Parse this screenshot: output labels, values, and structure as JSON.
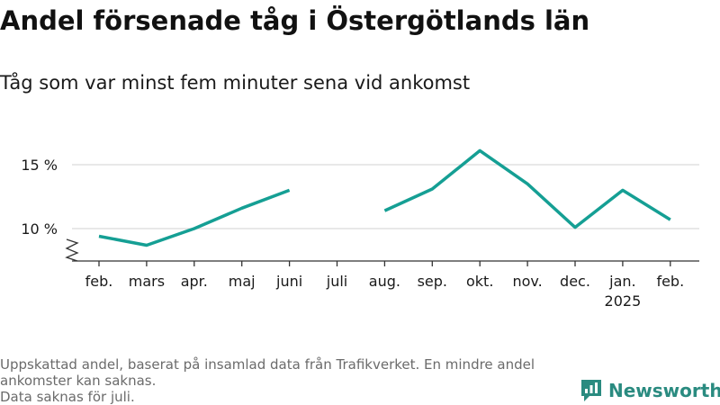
{
  "title": "Andel försenade tåg i Östergötlands län",
  "subtitle": "Tåg som var minst fem minuter sena vid ankomst",
  "footnote": {
    "line1": "Uppskattad andel, baserat på insamlad data från Trafikverket. En mindre andel",
    "line2": "ankomster kan saknas.",
    "line3": "Data saknas för juli."
  },
  "brand": {
    "name": "Newsworthy",
    "color": "#2a8b80"
  },
  "chart_data": {
    "type": "line",
    "title": "Andel försenade tåg i Östergötlands län",
    "subtitle": "Tåg som var minst fem minuter sena vid ankomst",
    "xlabel": "",
    "ylabel": "",
    "categories": [
      "feb.",
      "mars",
      "apr.",
      "maj",
      "juni",
      "juli",
      "aug.",
      "sep.",
      "okt.",
      "nov.",
      "dec.",
      "jan.",
      "feb."
    ],
    "year_label": "2025",
    "yticks": [
      10,
      15
    ],
    "ytick_labels": [
      "10 %",
      "15 %"
    ],
    "ylim": [
      7.5,
      17.5
    ],
    "grid": true,
    "legend": "none",
    "series": [
      {
        "color": "#159f94",
        "values": [
          9.4,
          8.7,
          10.0,
          11.6,
          13.0,
          null,
          11.4,
          13.1,
          16.1,
          13.5,
          10.1,
          13.0,
          10.7
        ]
      }
    ]
  }
}
